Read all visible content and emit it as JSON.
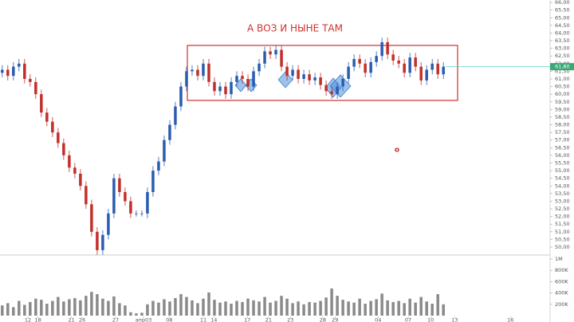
{
  "chart_data": {
    "type": "candlestick",
    "annotations": [
      "А ВОЗ И НЫНЕ ТАМ",
      "o"
    ],
    "up_color": "#2a5db0",
    "down_color": "#c0302b",
    "volume_color": "#8a8a8a",
    "open": [
      61.4,
      61.6,
      61.2,
      61.8,
      62.0,
      61.0,
      60.8,
      60.0,
      58.8,
      58.2,
      57.5,
      56.8,
      56.0,
      55.2,
      54.8,
      54.0,
      52.8,
      51.0,
      49.8,
      50.8,
      52.2,
      54.5,
      53.6,
      53.0,
      52.2,
      52.2,
      52.2,
      53.6,
      55.0,
      55.6,
      57.0,
      58.0,
      59.2,
      60.5,
      61.5,
      61.6,
      61.2,
      62.0,
      60.8,
      60.2,
      60.5,
      60.0,
      60.8,
      61.2,
      61.0,
      60.5,
      61.5,
      62.0,
      62.8,
      62.6,
      62.9,
      61.8,
      61.2,
      61.6,
      61.0,
      61.3,
      60.9,
      61.1,
      60.6,
      60.2,
      60.0,
      60.5,
      61.0,
      61.8,
      62.3,
      62.0,
      61.4,
      62.1,
      62.5,
      63.4,
      62.6,
      62.2,
      62.0,
      61.4,
      62.4,
      61.8,
      60.9,
      61.6,
      62.0,
      61.3
    ],
    "high": [
      61.9,
      61.9,
      62.1,
      62.3,
      62.3,
      61.3,
      61.1,
      60.3,
      59.1,
      58.5,
      57.8,
      57.1,
      56.3,
      55.5,
      55.1,
      54.3,
      53.1,
      51.3,
      51.1,
      52.5,
      54.8,
      54.8,
      53.9,
      53.3,
      52.4,
      52.4,
      53.9,
      55.3,
      55.9,
      57.3,
      58.3,
      59.5,
      60.8,
      61.8,
      61.9,
      61.9,
      62.3,
      62.3,
      61.1,
      60.8,
      60.8,
      61.1,
      61.5,
      61.5,
      61.3,
      61.8,
      62.3,
      63.1,
      63.1,
      63.2,
      63.2,
      62.1,
      61.9,
      61.9,
      61.6,
      61.6,
      61.4,
      61.4,
      60.9,
      60.5,
      60.8,
      61.3,
      62.1,
      62.6,
      62.6,
      62.3,
      62.4,
      62.8,
      63.7,
      63.7,
      62.9,
      62.5,
      62.3,
      62.7,
      62.7,
      62.1,
      61.9,
      62.3,
      62.3,
      62.1
    ],
    "low": [
      61.1,
      60.9,
      60.9,
      61.5,
      60.7,
      60.5,
      59.7,
      58.5,
      57.9,
      57.2,
      56.5,
      55.7,
      54.9,
      54.5,
      53.7,
      52.5,
      50.7,
      49.5,
      49.5,
      50.5,
      51.9,
      53.3,
      52.7,
      51.9,
      52.0,
      52.0,
      51.9,
      53.3,
      54.7,
      55.3,
      56.7,
      57.7,
      58.9,
      60.2,
      61.2,
      60.9,
      60.9,
      60.5,
      59.9,
      59.9,
      59.7,
      59.7,
      60.5,
      60.7,
      60.2,
      60.2,
      61.2,
      61.7,
      62.3,
      62.3,
      61.5,
      60.9,
      60.9,
      60.7,
      60.7,
      60.6,
      60.6,
      60.3,
      59.9,
      59.7,
      59.7,
      60.2,
      60.7,
      61.5,
      61.7,
      61.1,
      61.1,
      61.8,
      62.2,
      62.3,
      61.9,
      61.7,
      61.1,
      61.1,
      61.5,
      60.6,
      60.6,
      61.3,
      61.0,
      61.0
    ],
    "close": [
      61.6,
      61.2,
      61.8,
      62.0,
      61.0,
      60.8,
      60.0,
      58.8,
      58.2,
      57.5,
      56.8,
      56.0,
      55.2,
      54.8,
      54.0,
      52.8,
      51.0,
      49.8,
      50.8,
      52.2,
      54.5,
      53.6,
      53.0,
      52.2,
      52.2,
      52.2,
      53.6,
      55.0,
      55.6,
      57.0,
      58.0,
      59.2,
      60.5,
      61.5,
      61.6,
      61.2,
      62.0,
      60.8,
      60.2,
      60.5,
      60.0,
      60.8,
      61.2,
      61.0,
      60.5,
      61.5,
      62.0,
      62.8,
      62.6,
      62.9,
      61.8,
      61.2,
      61.6,
      61.0,
      61.3,
      60.9,
      61.1,
      60.6,
      60.2,
      60.0,
      60.5,
      61.0,
      61.8,
      62.3,
      62.0,
      61.4,
      62.1,
      62.5,
      63.4,
      62.6,
      62.2,
      62.0,
      61.4,
      62.4,
      61.8,
      60.9,
      61.6,
      62.0,
      61.3,
      61.8
    ],
    "volume": [
      180000,
      220000,
      150000,
      260000,
      190000,
      240000,
      300000,
      280000,
      210000,
      260000,
      330000,
      250000,
      290000,
      310000,
      270000,
      350000,
      420000,
      380000,
      300000,
      260000,
      340000,
      220000,
      180000,
      60000,
      40000,
      50000,
      200000,
      260000,
      230000,
      290000,
      250000,
      310000,
      380000,
      330000,
      270000,
      220000,
      300000,
      410000,
      280000,
      230000,
      250000,
      210000,
      260000,
      240000,
      300000,
      270000,
      250000,
      330000,
      230000,
      260000,
      350000,
      300000,
      220000,
      250000,
      200000,
      240000,
      230000,
      260000,
      320000,
      480000,
      350000,
      280000,
      250000,
      230000,
      300000,
      210000,
      260000,
      290000,
      390000,
      270000,
      240000,
      260000,
      220000,
      300000,
      230000,
      330000,
      250000,
      210000,
      380000,
      200000
    ],
    "ylim": [
      49.48,
      66.16
    ],
    "yticks": [
      {
        "value": 50,
        "label": "50,00"
      },
      {
        "value": 50.5,
        "label": "50,50"
      },
      {
        "value": 51,
        "label": "51,00"
      },
      {
        "value": 51.5,
        "label": "51,50"
      },
      {
        "value": 52,
        "label": "52,00"
      },
      {
        "value": 52.5,
        "label": "52,50"
      },
      {
        "value": 53,
        "label": "53,00"
      },
      {
        "value": 53.5,
        "label": "53,50"
      },
      {
        "value": 54,
        "label": "54,00"
      },
      {
        "value": 54.5,
        "label": "54,50"
      },
      {
        "value": 55,
        "label": "55,00"
      },
      {
        "value": 55.5,
        "label": "55,50"
      },
      {
        "value": 56,
        "label": "56,00"
      },
      {
        "value": 56.5,
        "label": "56,50"
      },
      {
        "value": 57,
        "label": "57,00"
      },
      {
        "value": 57.5,
        "label": "57,50"
      },
      {
        "value": 58,
        "label": "58,00"
      },
      {
        "value": 58.5,
        "label": "58,50"
      },
      {
        "value": 59,
        "label": "59,00"
      },
      {
        "value": 59.5,
        "label": "59,50"
      },
      {
        "value": 60,
        "label": "60,00"
      },
      {
        "value": 60.5,
        "label": "60,50"
      },
      {
        "value": 61,
        "label": "61,00"
      },
      {
        "value": 61.5,
        "label": "61,50"
      },
      {
        "value": 62,
        "label": "62,00"
      },
      {
        "value": 62.5,
        "label": "62,50"
      },
      {
        "value": 63,
        "label": "63,00"
      },
      {
        "value": 63.5,
        "label": "63,50"
      },
      {
        "value": 64,
        "label": "64,00"
      },
      {
        "value": 64.5,
        "label": "64,50"
      },
      {
        "value": 65,
        "label": "65,00"
      },
      {
        "value": 65.5,
        "label": "65,50"
      },
      {
        "value": 66,
        "label": "66,00"
      }
    ],
    "last_price": {
      "value": 61.8,
      "label": "61,80"
    },
    "volume_ylim": [
      0,
      1000000
    ],
    "volume_ticks": [
      {
        "value": 200000,
        "label": "200K"
      },
      {
        "value": 400000,
        "label": "400K"
      },
      {
        "value": 600000,
        "label": "600K"
      },
      {
        "value": 800000,
        "label": "800K"
      },
      {
        "value": 1000000,
        "label": "1M"
      }
    ],
    "xlim": [
      -0.4,
      98.1
    ],
    "xticks": [
      {
        "value": 4.6,
        "label": "12"
      },
      {
        "value": 6.4,
        "label": "18"
      },
      {
        "value": 12.4,
        "label": "21"
      },
      {
        "value": 14.3,
        "label": "26"
      },
      {
        "value": 20.3,
        "label": "27"
      },
      {
        "value": 25.3,
        "label": "апр03"
      },
      {
        "value": 29.9,
        "label": "08"
      },
      {
        "value": 36,
        "label": "11"
      },
      {
        "value": 37.9,
        "label": "14"
      },
      {
        "value": 43.9,
        "label": "17"
      },
      {
        "value": 47.7,
        "label": "21"
      },
      {
        "value": 51.6,
        "label": "23"
      },
      {
        "value": 57.4,
        "label": "28"
      },
      {
        "value": 59.6,
        "label": "29"
      },
      {
        "value": 67.3,
        "label": "04"
      },
      {
        "value": 72.7,
        "label": "07"
      },
      {
        "value": 76.7,
        "label": "10"
      },
      {
        "value": 81,
        "label": "13"
      },
      {
        "value": 91,
        "label": "16"
      }
    ]
  }
}
